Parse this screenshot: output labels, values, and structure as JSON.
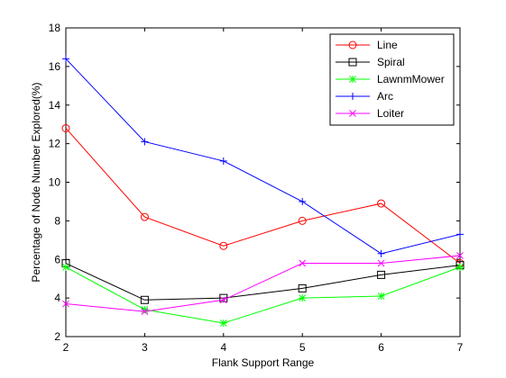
{
  "chart_data": {
    "type": "line",
    "title": "",
    "xlabel": "Flank Support Range",
    "ylabel": "Percentage of Node Number Explored(%)",
    "x": [
      2,
      3,
      4,
      5,
      6,
      7
    ],
    "xlim": [
      2,
      7
    ],
    "ylim": [
      2,
      18
    ],
    "xticks": [
      2,
      3,
      4,
      5,
      6,
      7
    ],
    "yticks": [
      2,
      4,
      6,
      8,
      10,
      12,
      14,
      16,
      18
    ],
    "grid": false,
    "legend_position": "top-right",
    "series": [
      {
        "name": "Line",
        "color": "#ff0000",
        "marker": "circle",
        "values": [
          12.8,
          8.2,
          6.7,
          8.0,
          8.9,
          5.8
        ]
      },
      {
        "name": "Spiral",
        "color": "#000000",
        "marker": "square",
        "values": [
          5.8,
          3.9,
          4.0,
          4.5,
          5.2,
          5.7
        ]
      },
      {
        "name": "LawnmMower",
        "color": "#00ff00",
        "marker": "star",
        "values": [
          5.6,
          3.4,
          2.7,
          4.0,
          4.1,
          5.6
        ]
      },
      {
        "name": "Arc",
        "color": "#0000ff",
        "marker": "plus",
        "values": [
          16.4,
          12.1,
          11.1,
          9.0,
          6.3,
          7.3
        ]
      },
      {
        "name": "Loiter",
        "color": "#ff00ff",
        "marker": "x",
        "values": [
          3.7,
          3.3,
          3.9,
          5.8,
          5.8,
          6.2
        ]
      }
    ]
  }
}
